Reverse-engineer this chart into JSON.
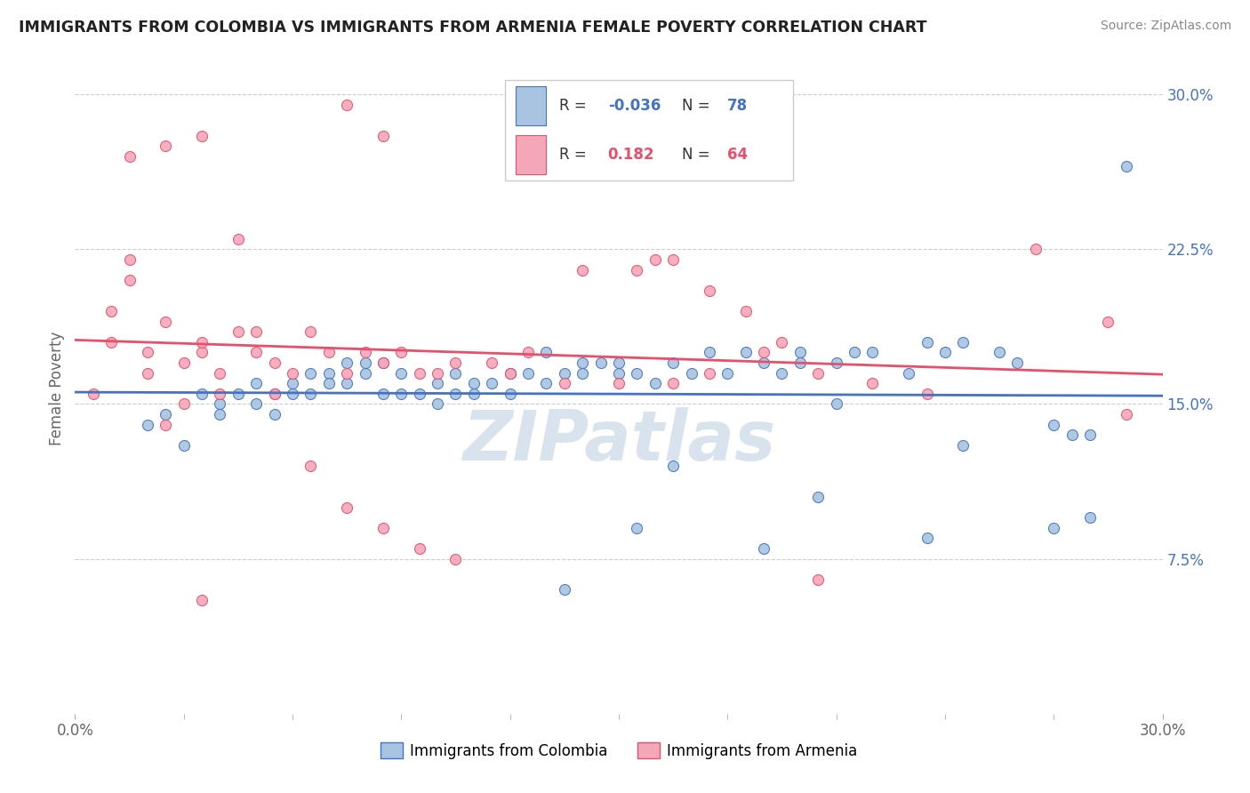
{
  "title": "IMMIGRANTS FROM COLOMBIA VS IMMIGRANTS FROM ARMENIA FEMALE POVERTY CORRELATION CHART",
  "source": "Source: ZipAtlas.com",
  "ylabel": "Female Poverty",
  "r_colombia": -0.036,
  "n_colombia": 78,
  "r_armenia": 0.182,
  "n_armenia": 64,
  "x_min": 0.0,
  "x_max": 0.3,
  "y_min": 0.0,
  "y_max": 0.3,
  "x_ticks": [
    0.0,
    0.3
  ],
  "x_tick_labels": [
    "0.0%",
    "30.0%"
  ],
  "y_ticks": [
    0.075,
    0.15,
    0.225,
    0.3
  ],
  "y_tick_labels": [
    "7.5%",
    "15.0%",
    "22.5%",
    "30.0%"
  ],
  "color_colombia": "#a8c4e0",
  "color_armenia": "#f4a7b9",
  "line_color_colombia": "#4472c4",
  "line_color_armenia": "#e84f6b",
  "background_color": "#ffffff",
  "watermark_text": "ZIPatlas",
  "watermark_color": "#c8d8e8",
  "colombia_x": [
    0.02,
    0.025,
    0.03,
    0.035,
    0.04,
    0.04,
    0.045,
    0.05,
    0.05,
    0.055,
    0.055,
    0.06,
    0.06,
    0.065,
    0.065,
    0.07,
    0.07,
    0.075,
    0.075,
    0.08,
    0.08,
    0.085,
    0.085,
    0.09,
    0.09,
    0.095,
    0.1,
    0.1,
    0.105,
    0.105,
    0.11,
    0.11,
    0.115,
    0.12,
    0.12,
    0.125,
    0.13,
    0.13,
    0.135,
    0.14,
    0.14,
    0.145,
    0.15,
    0.15,
    0.155,
    0.16,
    0.165,
    0.17,
    0.175,
    0.18,
    0.185,
    0.19,
    0.195,
    0.2,
    0.2,
    0.21,
    0.215,
    0.22,
    0.23,
    0.235,
    0.24,
    0.245,
    0.255,
    0.26,
    0.21,
    0.27,
    0.275,
    0.28,
    0.27,
    0.245,
    0.205,
    0.135,
    0.165,
    0.155,
    0.235,
    0.19,
    0.29,
    0.28
  ],
  "colombia_y": [
    0.14,
    0.145,
    0.13,
    0.155,
    0.15,
    0.145,
    0.155,
    0.16,
    0.15,
    0.155,
    0.145,
    0.16,
    0.155,
    0.165,
    0.155,
    0.165,
    0.16,
    0.17,
    0.16,
    0.165,
    0.17,
    0.155,
    0.17,
    0.165,
    0.155,
    0.155,
    0.16,
    0.15,
    0.165,
    0.155,
    0.16,
    0.155,
    0.16,
    0.155,
    0.165,
    0.165,
    0.16,
    0.175,
    0.165,
    0.165,
    0.17,
    0.17,
    0.165,
    0.17,
    0.165,
    0.16,
    0.17,
    0.165,
    0.175,
    0.165,
    0.175,
    0.17,
    0.165,
    0.175,
    0.17,
    0.17,
    0.175,
    0.175,
    0.165,
    0.18,
    0.175,
    0.18,
    0.175,
    0.17,
    0.15,
    0.14,
    0.135,
    0.095,
    0.09,
    0.13,
    0.105,
    0.06,
    0.12,
    0.09,
    0.085,
    0.08,
    0.265,
    0.135
  ],
  "armenia_x": [
    0.005,
    0.01,
    0.01,
    0.015,
    0.015,
    0.02,
    0.02,
    0.025,
    0.025,
    0.03,
    0.03,
    0.035,
    0.035,
    0.04,
    0.04,
    0.045,
    0.05,
    0.05,
    0.055,
    0.06,
    0.065,
    0.07,
    0.075,
    0.08,
    0.085,
    0.09,
    0.095,
    0.1,
    0.105,
    0.115,
    0.12,
    0.125,
    0.135,
    0.15,
    0.165,
    0.175,
    0.19,
    0.205,
    0.22,
    0.235,
    0.015,
    0.025,
    0.035,
    0.045,
    0.055,
    0.065,
    0.075,
    0.085,
    0.095,
    0.105,
    0.075,
    0.085,
    0.14,
    0.155,
    0.16,
    0.165,
    0.175,
    0.185,
    0.195,
    0.265,
    0.285,
    0.29,
    0.035,
    0.205
  ],
  "armenia_y": [
    0.155,
    0.18,
    0.195,
    0.21,
    0.22,
    0.165,
    0.175,
    0.19,
    0.14,
    0.15,
    0.17,
    0.175,
    0.18,
    0.155,
    0.165,
    0.185,
    0.175,
    0.185,
    0.17,
    0.165,
    0.185,
    0.175,
    0.165,
    0.175,
    0.17,
    0.175,
    0.165,
    0.165,
    0.17,
    0.17,
    0.165,
    0.175,
    0.16,
    0.16,
    0.16,
    0.165,
    0.175,
    0.165,
    0.16,
    0.155,
    0.27,
    0.275,
    0.28,
    0.23,
    0.155,
    0.12,
    0.1,
    0.09,
    0.08,
    0.075,
    0.295,
    0.28,
    0.215,
    0.215,
    0.22,
    0.22,
    0.205,
    0.195,
    0.18,
    0.225,
    0.19,
    0.145,
    0.055,
    0.065
  ]
}
